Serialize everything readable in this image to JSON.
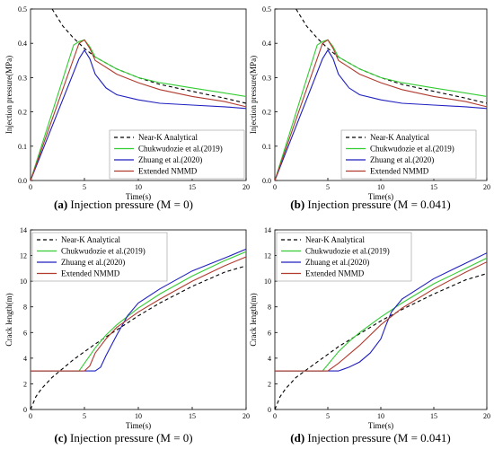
{
  "captions": [
    {
      "letter": "(a)",
      "text": " Injection pressure (M = 0)"
    },
    {
      "letter": "(b)",
      "text": " Injection pressure (M = 0.041)"
    },
    {
      "letter": "(c)",
      "text": " Injection pressure (M = 0)"
    },
    {
      "letter": "(d)",
      "text": " Injection pressure (M = 0.041)"
    }
  ],
  "colors": {
    "near_k": "#000000",
    "chukwudozie": "#33cc33",
    "zhuang": "#1f1fbf",
    "nmmd": "#b03a2e"
  },
  "chart_data": [
    {
      "type": "line",
      "title": "",
      "xlabel": "Time(s)",
      "ylabel": "Injection pressure(MPa)",
      "xlim": [
        0,
        20
      ],
      "ylim": [
        0,
        0.5
      ],
      "xticks": [
        "0",
        "5",
        "10",
        "15",
        "20"
      ],
      "yticks": [
        "0.0",
        "0.1",
        "0.2",
        "0.3",
        "0.4",
        "0.5"
      ],
      "legend_position": "bottom-right",
      "series": [
        {
          "name": "Near-K Analytical",
          "style": "dashed",
          "x": [
            2.0,
            3,
            4,
            5,
            6,
            8,
            10,
            12,
            15,
            18,
            20
          ],
          "y": [
            0.5,
            0.45,
            0.415,
            0.385,
            0.36,
            0.325,
            0.3,
            0.28,
            0.26,
            0.24,
            0.225
          ]
        },
        {
          "name": "Chukwudozie et al.(2019)",
          "style": "solid",
          "x": [
            0,
            4,
            4.5,
            5,
            5.5,
            6,
            8,
            10,
            12,
            15,
            18,
            20
          ],
          "y": [
            0,
            0.395,
            0.405,
            0.41,
            0.39,
            0.36,
            0.325,
            0.3,
            0.285,
            0.27,
            0.255,
            0.245
          ]
        },
        {
          "name": "Zhuang et al.(2020)",
          "style": "solid",
          "x": [
            0,
            4.5,
            5,
            5.5,
            6,
            7,
            8,
            10,
            12,
            15,
            18,
            20
          ],
          "y": [
            0,
            0.355,
            0.38,
            0.355,
            0.31,
            0.27,
            0.25,
            0.235,
            0.225,
            0.22,
            0.215,
            0.21
          ]
        },
        {
          "name": "Extended NMMD",
          "style": "solid",
          "x": [
            0,
            4.5,
            5,
            5.5,
            6,
            8,
            10,
            12,
            15,
            18,
            20
          ],
          "y": [
            0,
            0.4,
            0.41,
            0.385,
            0.35,
            0.31,
            0.285,
            0.265,
            0.245,
            0.23,
            0.215
          ]
        }
      ]
    },
    {
      "type": "line",
      "title": "",
      "xlabel": "Time(s)",
      "ylabel": "Injection pressure(MPa)",
      "xlim": [
        0,
        20
      ],
      "ylim": [
        0,
        0.5
      ],
      "xticks": [
        "0",
        "5",
        "10",
        "15",
        "20"
      ],
      "yticks": [
        "0.0",
        "0.1",
        "0.2",
        "0.3",
        "0.4",
        "0.5"
      ],
      "legend_position": "bottom-right",
      "series": [
        {
          "name": "Near-K Analytical",
          "style": "dashed",
          "x": [
            2.0,
            3,
            4,
            5,
            6,
            8,
            10,
            12,
            15,
            18,
            20
          ],
          "y": [
            0.5,
            0.45,
            0.415,
            0.385,
            0.36,
            0.325,
            0.3,
            0.28,
            0.26,
            0.24,
            0.225
          ]
        },
        {
          "name": "Chukwudozie et al.(2019)",
          "style": "solid",
          "x": [
            0,
            4,
            4.5,
            5,
            5.5,
            6,
            8,
            10,
            12,
            15,
            18,
            20
          ],
          "y": [
            0,
            0.395,
            0.405,
            0.41,
            0.39,
            0.36,
            0.325,
            0.3,
            0.285,
            0.27,
            0.255,
            0.245
          ]
        },
        {
          "name": "Zhuang et al.(2020)",
          "style": "solid",
          "x": [
            0,
            4.5,
            5,
            5.5,
            6,
            7,
            8,
            10,
            12,
            15,
            18,
            20
          ],
          "y": [
            0,
            0.355,
            0.38,
            0.355,
            0.31,
            0.27,
            0.25,
            0.235,
            0.225,
            0.22,
            0.215,
            0.21
          ]
        },
        {
          "name": "Extended NMMD",
          "style": "solid",
          "x": [
            0,
            4.5,
            5,
            5.5,
            6,
            8,
            10,
            12,
            15,
            18,
            20
          ],
          "y": [
            0,
            0.4,
            0.41,
            0.385,
            0.35,
            0.31,
            0.285,
            0.265,
            0.245,
            0.23,
            0.215
          ]
        }
      ]
    },
    {
      "type": "line",
      "title": "",
      "xlabel": "Time(s)",
      "ylabel": "Crack length(m)",
      "xlim": [
        0,
        20
      ],
      "ylim": [
        0,
        14
      ],
      "xticks": [
        "0",
        "5",
        "10",
        "15",
        "20"
      ],
      "yticks": [
        "0",
        "2",
        "4",
        "6",
        "8",
        "10",
        "12",
        "14"
      ],
      "legend_position": "top-left",
      "series": [
        {
          "name": "Near-K Analytical",
          "style": "dashed",
          "x": [
            0,
            0.5,
            1,
            2,
            3,
            4,
            5,
            6,
            8,
            10,
            12,
            15,
            18,
            20
          ],
          "y": [
            0,
            1.0,
            1.6,
            2.5,
            3.2,
            3.9,
            4.5,
            5.1,
            6.2,
            7.3,
            8.3,
            9.6,
            10.7,
            11.2
          ]
        },
        {
          "name": "Chukwudozie et al.(2019)",
          "style": "solid",
          "x": [
            0,
            4.5,
            5,
            6,
            7,
            8,
            10,
            12,
            15,
            18,
            20
          ],
          "y": [
            3,
            3,
            3.6,
            4.8,
            5.8,
            6.6,
            7.9,
            9.0,
            10.4,
            11.6,
            12.3
          ]
        },
        {
          "name": "Zhuang et al.(2020)",
          "style": "solid",
          "x": [
            0,
            6,
            6.5,
            7,
            8,
            9,
            10,
            12,
            15,
            18,
            20
          ],
          "y": [
            3,
            3,
            3.3,
            4.2,
            5.8,
            7.3,
            8.3,
            9.4,
            10.8,
            11.8,
            12.5
          ]
        },
        {
          "name": "Extended NMMD",
          "style": "solid",
          "x": [
            0,
            5,
            5.5,
            6,
            7,
            8,
            10,
            12,
            15,
            18,
            20
          ],
          "y": [
            3,
            3,
            3.4,
            4.4,
            5.5,
            6.4,
            7.6,
            8.6,
            10.0,
            11.2,
            11.9
          ]
        }
      ]
    },
    {
      "type": "line",
      "title": "",
      "xlabel": "Time(s)",
      "ylabel": "Crack length(m)",
      "xlim": [
        0,
        20
      ],
      "ylim": [
        0,
        14
      ],
      "xticks": [
        "0",
        "5",
        "10",
        "15",
        "20"
      ],
      "yticks": [
        "0",
        "2",
        "4",
        "6",
        "8",
        "10",
        "12",
        "14"
      ],
      "legend_position": "top-left",
      "series": [
        {
          "name": "Near-K Analytical",
          "style": "dashed",
          "x": [
            0,
            0.5,
            1,
            2,
            3,
            4,
            5,
            6,
            8,
            10,
            12,
            15,
            18,
            20
          ],
          "y": [
            0,
            1.0,
            1.6,
            2.5,
            3.1,
            3.7,
            4.3,
            4.9,
            5.9,
            6.9,
            7.8,
            9.0,
            10.1,
            10.6
          ]
        },
        {
          "name": "Chukwudozie et al.(2019)",
          "style": "solid",
          "x": [
            0,
            4.5,
            5,
            6,
            7,
            8,
            10,
            12,
            15,
            18,
            20
          ],
          "y": [
            3,
            3,
            3.5,
            4.5,
            5.3,
            6.0,
            7.2,
            8.3,
            9.8,
            11.0,
            11.8
          ]
        },
        {
          "name": "Zhuang et al.(2020)",
          "style": "solid",
          "x": [
            0,
            6,
            7,
            8,
            9,
            10,
            10.5,
            11,
            12,
            15,
            18,
            20
          ],
          "y": [
            3,
            3,
            3.3,
            3.7,
            4.4,
            5.5,
            6.6,
            7.6,
            8.6,
            10.2,
            11.4,
            12.2
          ]
        },
        {
          "name": "Extended NMMD",
          "style": "solid",
          "x": [
            0,
            5,
            6,
            7,
            8,
            10,
            12,
            15,
            18,
            20
          ],
          "y": [
            3,
            3,
            3.6,
            4.3,
            5.0,
            6.6,
            7.9,
            9.4,
            10.7,
            11.5
          ]
        }
      ]
    }
  ]
}
